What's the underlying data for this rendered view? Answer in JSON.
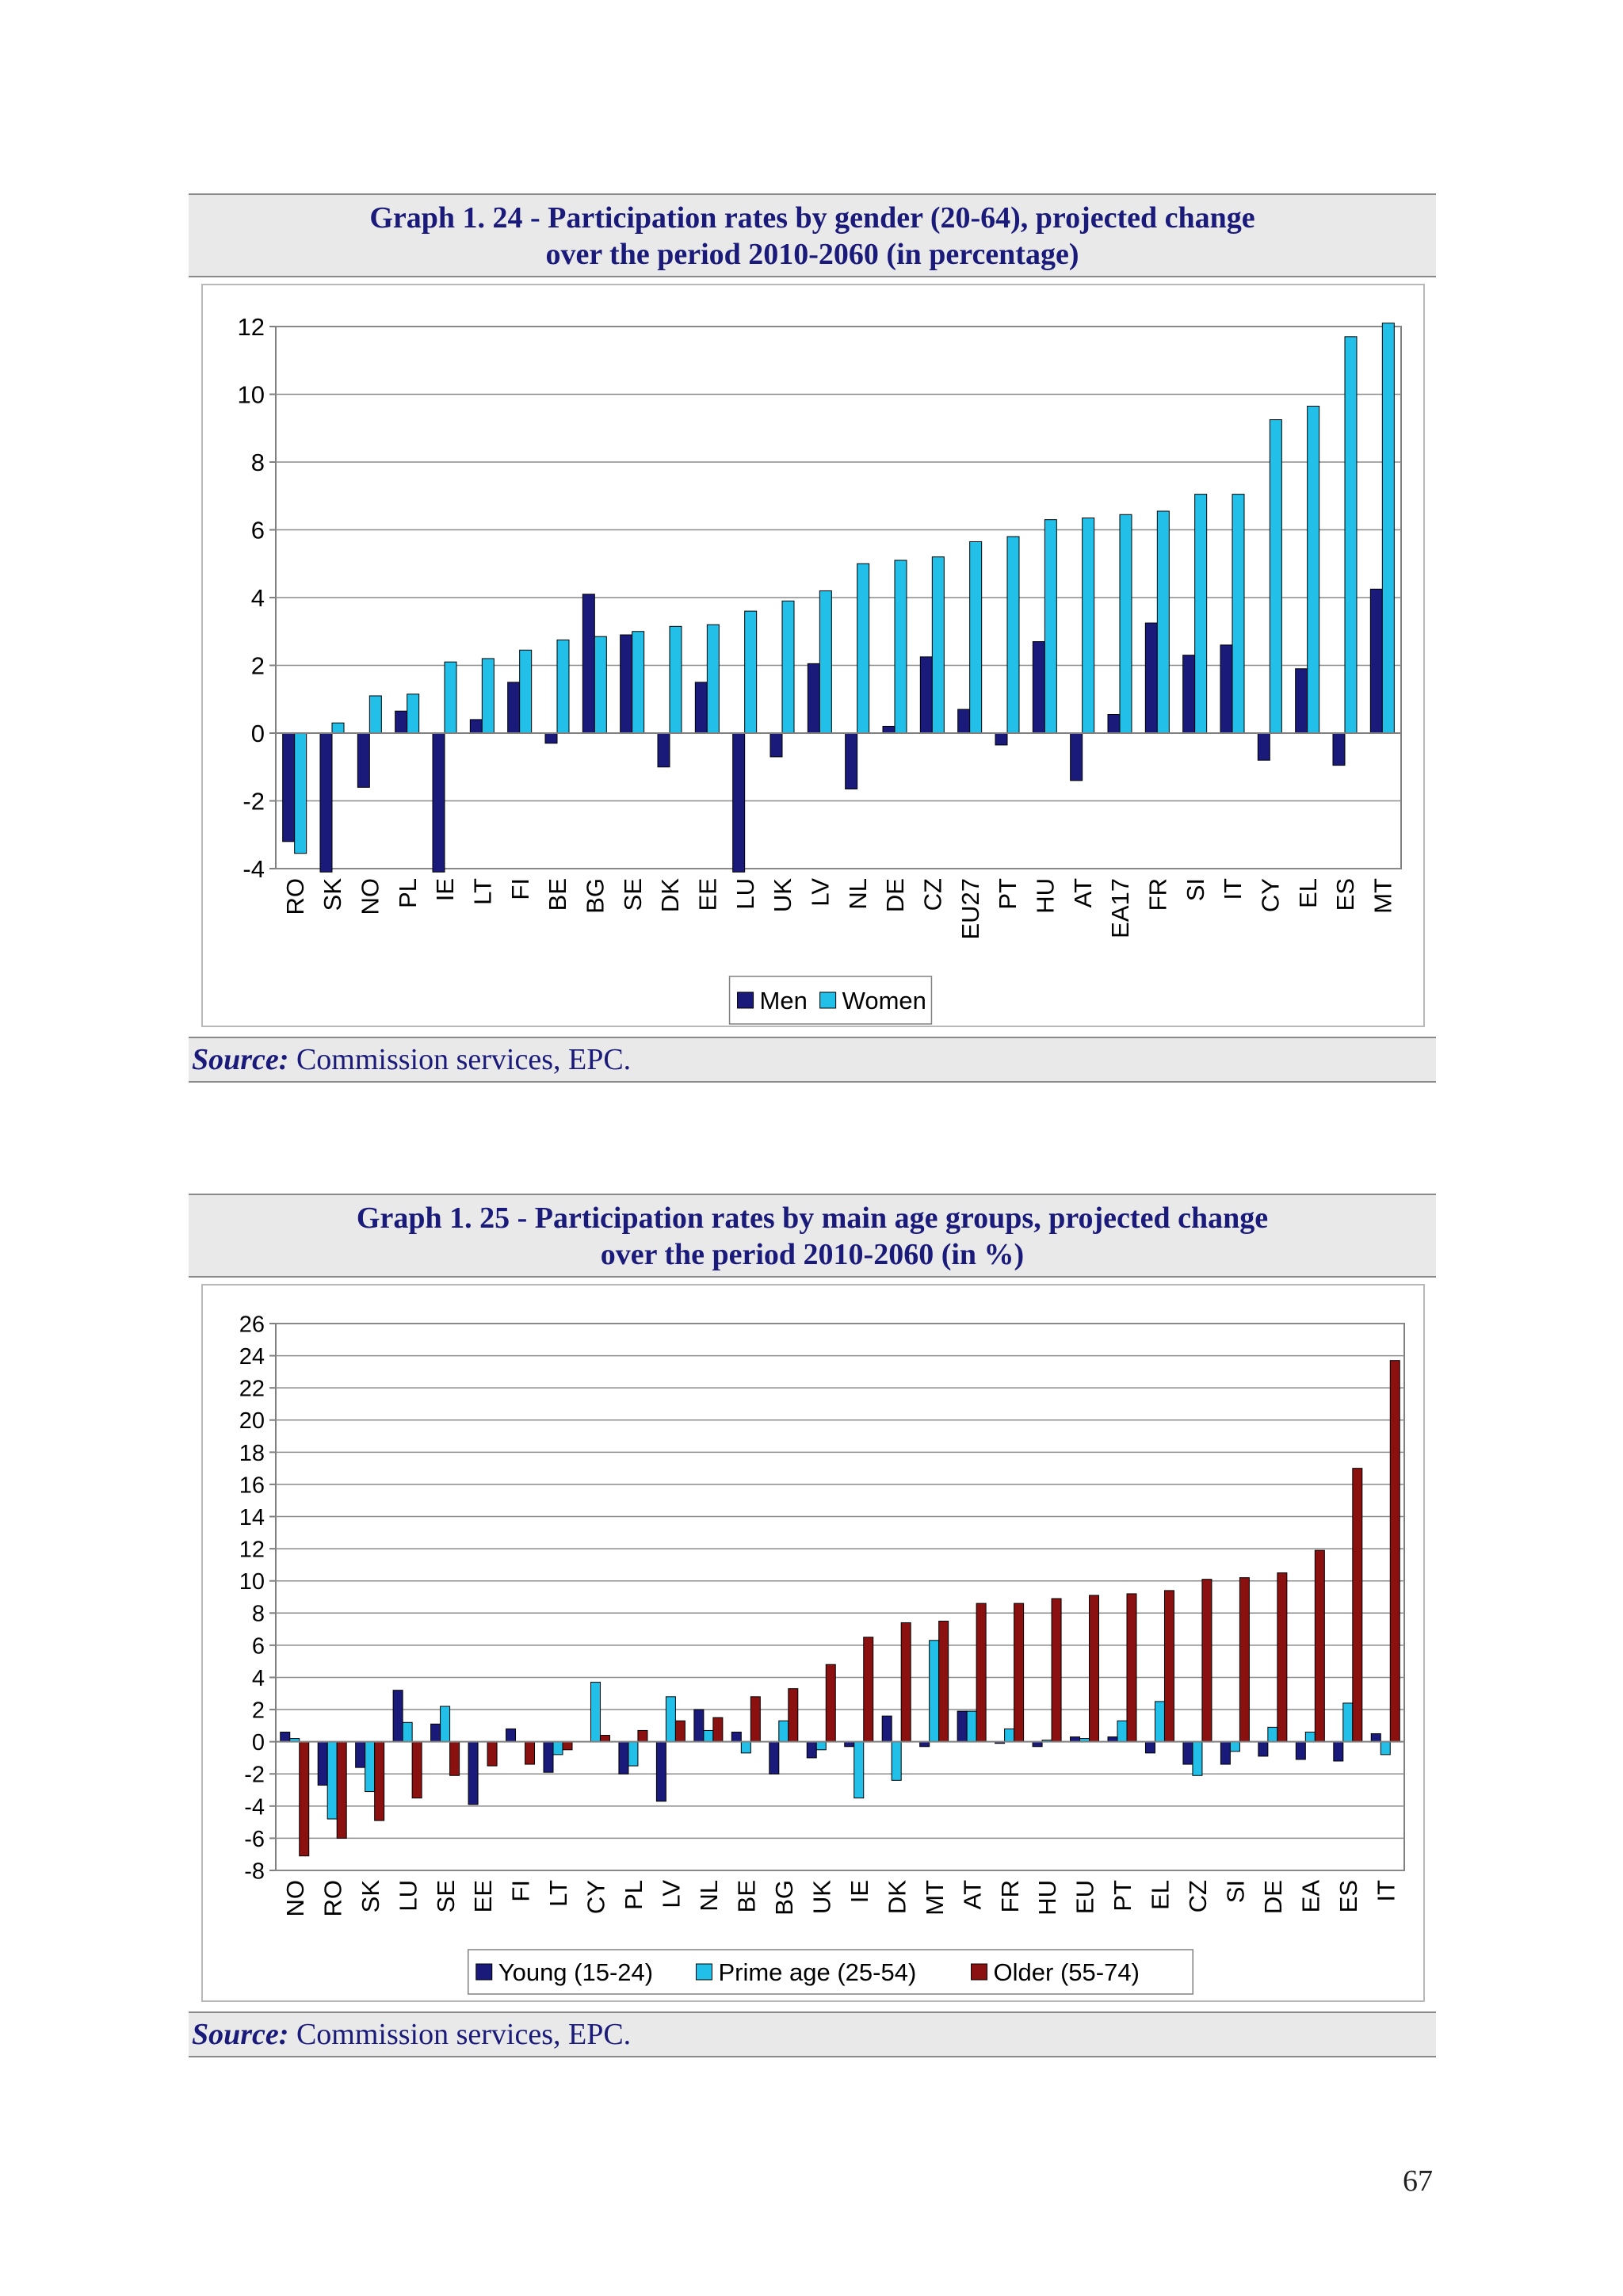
{
  "page_number": "67",
  "graphs": [
    {
      "title_line1": "Graph 1. 24 - Participation rates by gender (20-64), projected change",
      "title_line2": "over the period 2010-2060 (in percentage)",
      "source_label": "Source:",
      "source_text": " Commission services, EPC."
    },
    {
      "title_line1": "Graph 1. 25 - Participation rates by main age groups, projected change",
      "title_line2": "over the period 2010-2060 (in %)",
      "source_label": "Source:",
      "source_text": " Commission services, EPC."
    }
  ],
  "chart_data": [
    {
      "type": "bar",
      "title": "Graph 1. 24 - Participation rates by gender (20-64), projected change over the period 2010-2060 (in percentage)",
      "categories": [
        "RO",
        "SK",
        "NO",
        "PL",
        "IE",
        "LT",
        "FI",
        "BE",
        "BG",
        "SE",
        "DK",
        "EE",
        "LU",
        "UK",
        "LV",
        "NL",
        "DE",
        "CZ",
        "EU27",
        "PT",
        "HU",
        "AT",
        "EA17",
        "FR",
        "SI",
        "IT",
        "CY",
        "EL",
        "ES",
        "MT"
      ],
      "series": [
        {
          "name": "Men",
          "color": "#1a1a7a",
          "values": [
            -3.2,
            -4.1,
            -1.6,
            0.65,
            -4.1,
            0.4,
            1.5,
            -0.3,
            4.1,
            2.9,
            -1.0,
            1.5,
            -4.1,
            -0.7,
            2.05,
            -1.65,
            0.2,
            2.25,
            0.7,
            -0.35,
            2.7,
            -1.4,
            0.55,
            3.25,
            2.3,
            2.6,
            -0.8,
            1.9,
            -0.95,
            4.25
          ]
        },
        {
          "name": "Women",
          "color": "#22c0e8",
          "values": [
            -3.55,
            0.3,
            1.1,
            1.15,
            2.1,
            2.2,
            2.45,
            2.75,
            2.85,
            3.0,
            3.15,
            3.2,
            3.6,
            3.9,
            4.2,
            5.0,
            5.1,
            5.2,
            5.65,
            5.8,
            6.3,
            6.35,
            6.45,
            6.55,
            7.05,
            7.05,
            9.25,
            9.65,
            11.7,
            12.1
          ]
        }
      ],
      "ylim": [
        -4,
        12
      ],
      "yticks": [
        -4,
        -2,
        0,
        2,
        4,
        6,
        8,
        10,
        12
      ],
      "legend_position": "bottom",
      "grid": true
    },
    {
      "type": "bar",
      "title": "Graph 1. 25 - Participation rates by main age groups, projected change over the period 2010-2060 (in %)",
      "categories": [
        "NO",
        "RO",
        "SK",
        "LU",
        "SE",
        "EE",
        "FI",
        "LT",
        "CY",
        "PL",
        "LV",
        "NL",
        "BE",
        "BG",
        "UK",
        "IE",
        "DK",
        "MT",
        "AT",
        "FR",
        "HU",
        "EU",
        "PT",
        "EL",
        "CZ",
        "SI",
        "DE",
        "EA",
        "ES",
        "IT"
      ],
      "series": [
        {
          "name": "Young (15-24)",
          "color": "#1a1a7a",
          "values": [
            0.6,
            -2.7,
            -1.6,
            3.2,
            1.1,
            -3.9,
            0.8,
            -1.9,
            0.0,
            -2.0,
            -3.7,
            2.0,
            0.6,
            -2.0,
            -1.0,
            -0.3,
            1.6,
            -0.3,
            1.9,
            -0.1,
            -0.3,
            0.3,
            0.3,
            -0.7,
            -1.4,
            -1.4,
            -0.9,
            -1.1,
            -1.2,
            0.5
          ]
        },
        {
          "name": "Prime age (25-54)",
          "color": "#22c0e8",
          "values": [
            0.2,
            -4.8,
            -3.1,
            1.2,
            2.2,
            0.0,
            0.0,
            -0.8,
            3.7,
            -1.5,
            2.8,
            0.7,
            -0.7,
            1.3,
            -0.5,
            -3.5,
            -2.4,
            6.3,
            1.9,
            0.8,
            0.1,
            0.2,
            1.3,
            2.5,
            -2.1,
            -0.6,
            0.9,
            0.6,
            2.4,
            -0.8
          ]
        },
        {
          "name": "Older (55-74)",
          "color": "#8b1010",
          "values": [
            -7.1,
            -6.0,
            -4.9,
            -3.5,
            -2.1,
            -1.5,
            -1.4,
            -0.5,
            0.4,
            0.7,
            1.3,
            1.5,
            2.8,
            3.3,
            4.8,
            6.5,
            7.4,
            7.5,
            8.6,
            8.6,
            8.9,
            9.1,
            9.2,
            9.4,
            10.1,
            10.2,
            10.5,
            11.9,
            17.0,
            23.7
          ]
        }
      ],
      "ylim": [
        -8,
        26
      ],
      "yticks": [
        -8,
        -6,
        -4,
        -2,
        0,
        2,
        4,
        6,
        8,
        10,
        12,
        14,
        16,
        18,
        20,
        22,
        24,
        26
      ],
      "legend_position": "bottom",
      "grid": true
    }
  ]
}
